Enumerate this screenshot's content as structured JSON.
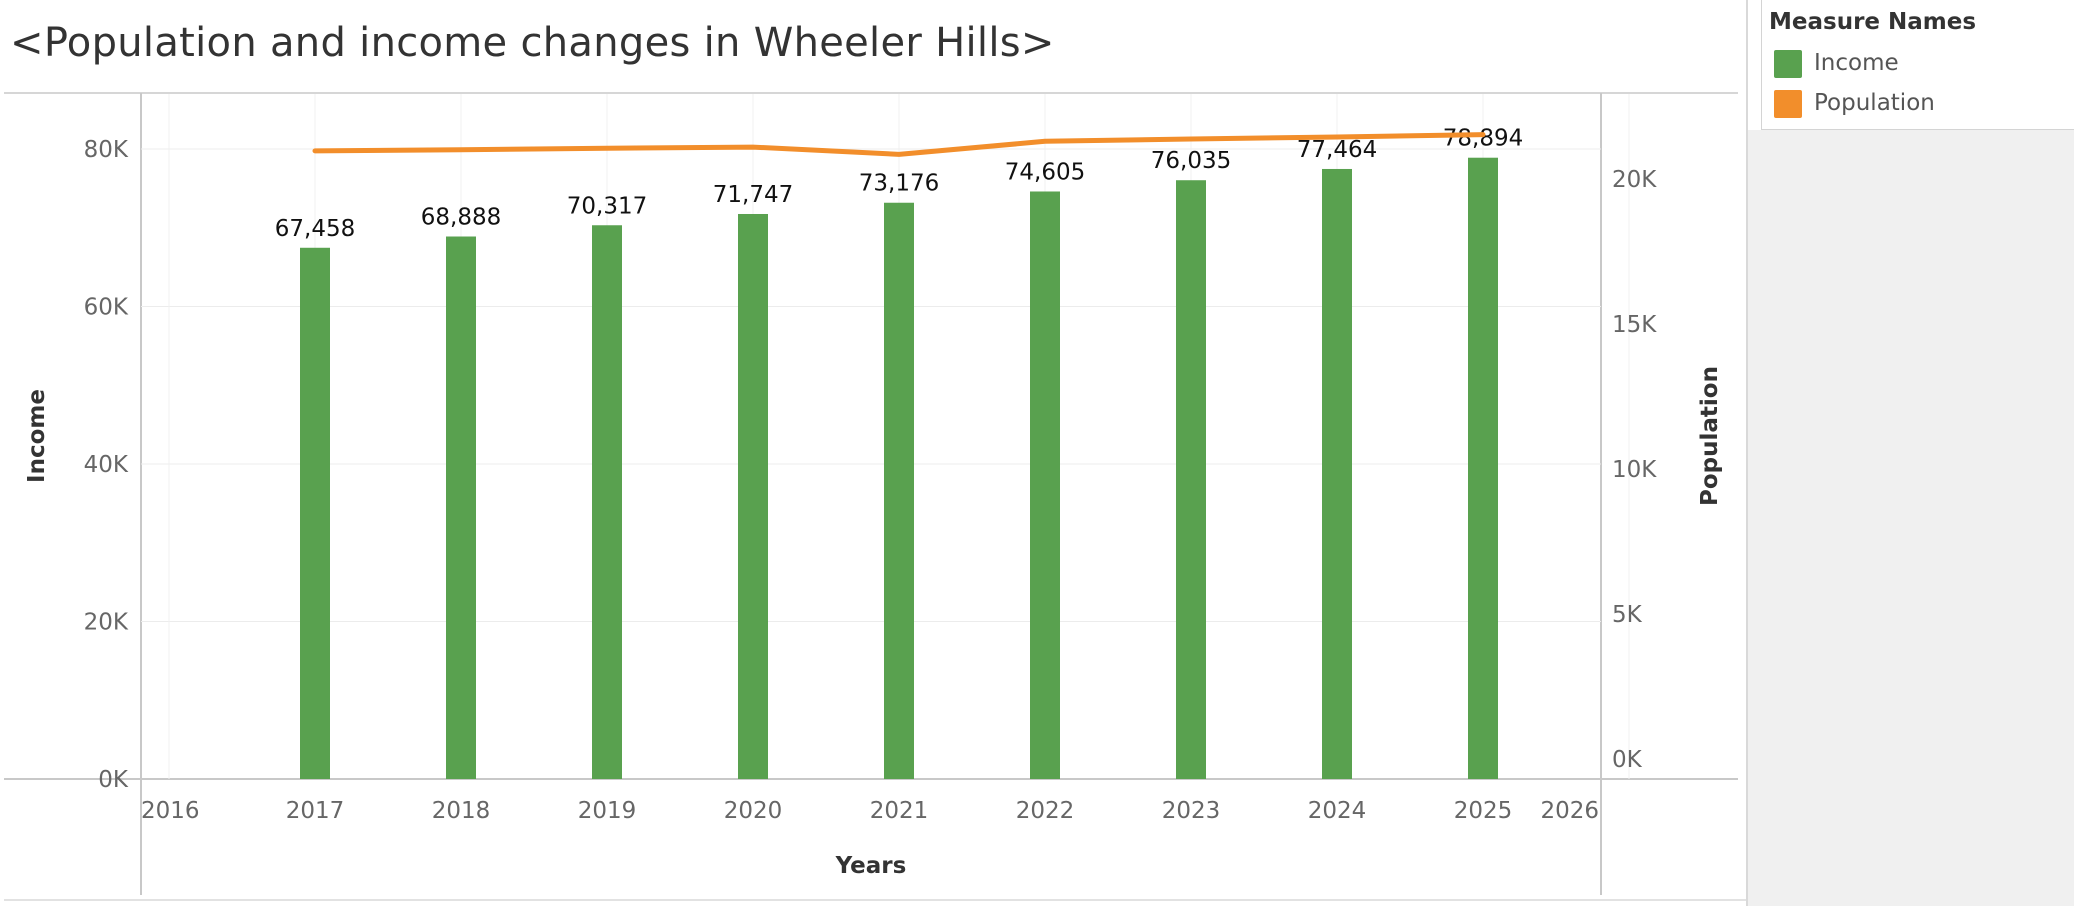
{
  "title": "<Population and income changes in Wheeler Hills>",
  "legend": {
    "title": "Measure Names",
    "items": [
      {
        "label": "Income",
        "color": "#59a14f"
      },
      {
        "label": "Population",
        "color": "#f28e2b"
      }
    ]
  },
  "chart_data": {
    "type": "bar",
    "title": "<Population and income changes in Wheeler Hills>",
    "xlabel": "Years",
    "ylabel": "Income",
    "y2label": "Population",
    "x_ticks": [
      "2016",
      "2017",
      "2018",
      "2019",
      "2020",
      "2021",
      "2022",
      "2023",
      "2024",
      "2025",
      "2026"
    ],
    "xlim": [
      2016,
      2026
    ],
    "y_ticks": [
      "0K",
      "20K",
      "40K",
      "60K",
      "80K"
    ],
    "ylim": [
      0,
      80000
    ],
    "y2_ticks": [
      "0K",
      "5K",
      "10K",
      "15K",
      "20K"
    ],
    "y2lim": [
      0,
      20000
    ],
    "grid": true,
    "legend_position": "right",
    "categories": [
      "2017",
      "2018",
      "2019",
      "2020",
      "2021",
      "2022",
      "2023",
      "2024",
      "2025"
    ],
    "series": [
      {
        "name": "Income",
        "type": "bar",
        "axis": "left",
        "color": "#59a14f",
        "values": [
          67458,
          68888,
          70317,
          71747,
          73176,
          74605,
          76035,
          77464,
          78894
        ],
        "labels": [
          "67,458",
          "68,888",
          "70,317",
          "71,747",
          "73,176",
          "74,605",
          "76,035",
          "77,464",
          "78,894"
        ]
      },
      {
        "name": "Population",
        "type": "line",
        "axis": "right",
        "color": "#f28e2b",
        "values": [
          20970,
          21010,
          21060,
          21100,
          20850,
          21300,
          21380,
          21450,
          21530
        ]
      }
    ]
  }
}
